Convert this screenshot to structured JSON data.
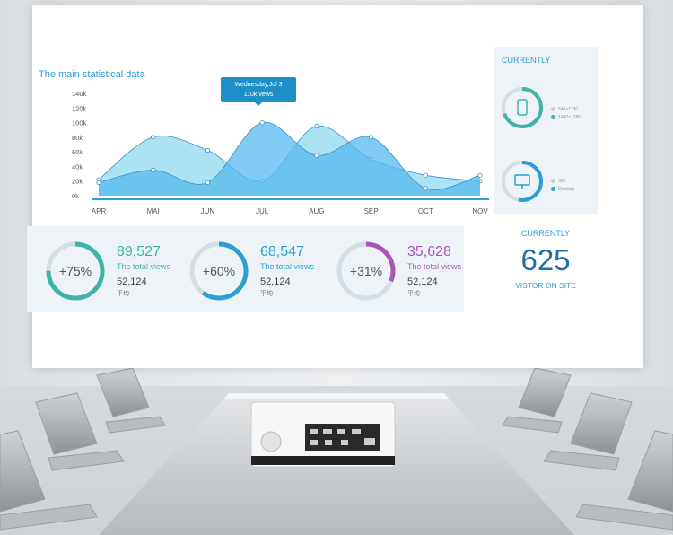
{
  "chart": {
    "title": "The main statistical data",
    "y_ticks": [
      "140k",
      "120k",
      "100k",
      "80k",
      "60k",
      "40k",
      "20k",
      "0k"
    ],
    "x_ticks": [
      "APR",
      "MAI",
      "JUN",
      "JUL",
      "AUG",
      "SEP",
      "OCT",
      "NOV"
    ],
    "tooltip_line1": "Wednesday,Jul 3",
    "tooltip_line2": "110k vews"
  },
  "chart_data": {
    "type": "area",
    "categories": [
      "APR",
      "MAI",
      "JUN",
      "JUL",
      "AUG",
      "SEP",
      "OCT",
      "NOV"
    ],
    "ylim": [
      0,
      140
    ],
    "series": [
      {
        "values": [
          18,
          35,
          18,
          100,
          55,
          80,
          10,
          28
        ]
      },
      {
        "values": [
          22,
          80,
          62,
          20,
          95,
          50,
          28,
          20
        ]
      }
    ],
    "colors": [
      "#55b9ef",
      "#8fdaf0"
    ]
  },
  "side_panel": {
    "title": "CURRENTLY",
    "device1_legend": [
      "640×1136",
      "1440×1280"
    ],
    "device2_legend": [
      "320",
      "Desktop"
    ]
  },
  "stats": [
    {
      "percent": "+75%",
      "value": "89,527",
      "label": "The total views",
      "sub": "52,124",
      "sub2": "平均",
      "color": "#3fb3a8",
      "fill": 0.75
    },
    {
      "percent": "+60%",
      "value": "68,547",
      "label": "The total views",
      "sub": "52,124",
      "sub2": "平均",
      "color": "#2a9fd6",
      "fill": 0.6
    },
    {
      "percent": "+31%",
      "value": "35,628",
      "label": "The total views",
      "sub": "52,124",
      "sub2": "平均",
      "color": "#a955b8",
      "fill": 0.31
    }
  ],
  "visitor": {
    "title": "CURRENTLY",
    "number": "625",
    "label": "VISTOR ON SITE"
  }
}
